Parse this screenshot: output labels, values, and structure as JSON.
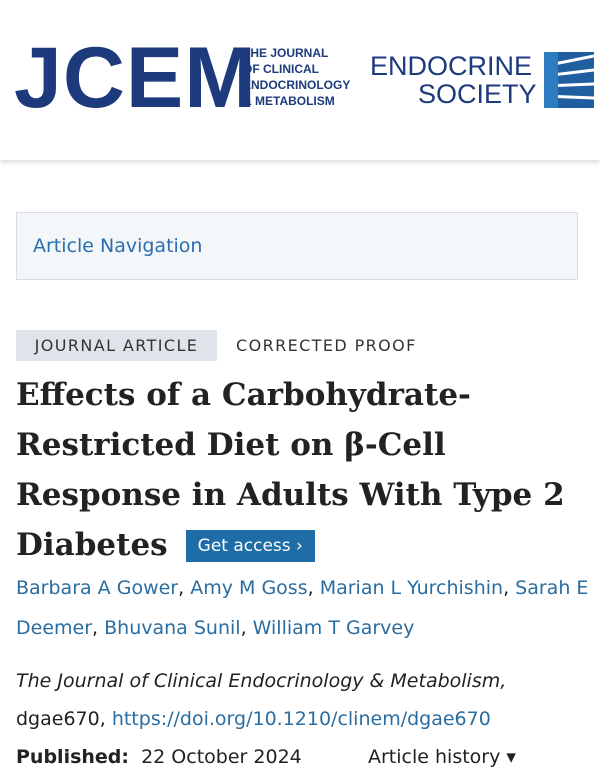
{
  "header": {
    "logo": "JCEM",
    "journal_name": [
      "THE JOURNAL",
      "OF CLINICAL",
      "ENDOCRINOLOGY",
      "& METABOLISM"
    ],
    "society": [
      "ENDOCRINE",
      "SOCIETY"
    ]
  },
  "navigation": {
    "label": "Article Navigation"
  },
  "article": {
    "tags": [
      "JOURNAL ARTICLE",
      "CORRECTED PROOF"
    ],
    "title": "Effects of a Carbohydrate-Restricted Diet on β-Cell Response in Adults With Type 2 Diabetes",
    "access_button": "Get access",
    "authors": [
      "Barbara A Gower",
      "Amy M Goss",
      "Marian L Yurchishin",
      "Sarah E Deemer",
      "Bhuvana Sunil",
      "William T Garvey"
    ],
    "separator": ",",
    "journal": "The Journal of Clinical Endocrinology & Metabolism,",
    "article_id": "dgae670,",
    "doi": "https://doi.org/10.1210/clinem/dgae670",
    "published_label": "Published:",
    "published_date": "22 October 2024",
    "history": "Article history"
  }
}
